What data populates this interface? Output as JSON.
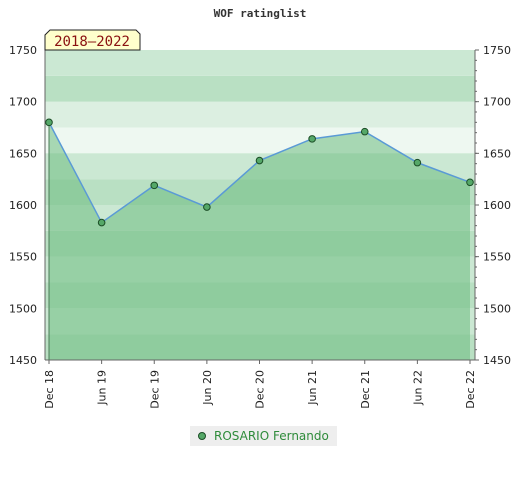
{
  "chart_data": {
    "type": "line",
    "title": "WOF ratinglist",
    "badge": "2018–2022",
    "categories": [
      "Dec 18",
      "Jun 19",
      "Dec 19",
      "Jun 20",
      "Dec 20",
      "Jun 21",
      "Dec 21",
      "Jun 22",
      "Dec 22"
    ],
    "ylim": [
      1450,
      1750
    ],
    "yticks": [
      "1450",
      "1500",
      "1550",
      "1600",
      "1650",
      "1700",
      "1750"
    ],
    "series": [
      {
        "name": "ROSARIO Fernando",
        "values": [
          1680,
          1583,
          1619,
          1598,
          1643,
          1664,
          1671,
          1641,
          1622
        ]
      }
    ],
    "legend_position": "bottom-center",
    "grid": true,
    "colors": {
      "line": "#5a9ad6",
      "marker": "#55a868",
      "marker_edge": "#1b4d26",
      "area": "#6dbb7f",
      "badge_bg": "#ffffcc"
    }
  }
}
